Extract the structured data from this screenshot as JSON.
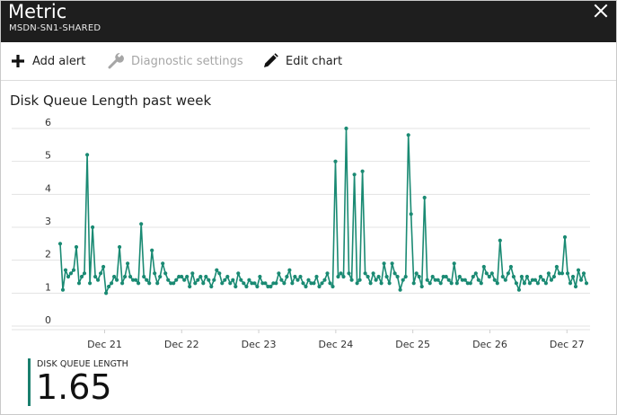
{
  "window": {
    "title": "Metric",
    "subtitle": "MSDN-SN1-SHARED"
  },
  "toolbar": {
    "add_alert": "Add alert",
    "diagnostic_settings": "Diagnostic settings",
    "edit_chart": "Edit chart"
  },
  "chart_title": "Disk Queue Length past week",
  "metric": {
    "label": "DISK QUEUE LENGTH",
    "value": "1.65"
  },
  "colors": {
    "series": "#1a8a73",
    "accent": "#1a7f6e",
    "titlebar": "#1e1e1e"
  },
  "icons": [
    "close-icon",
    "plus-icon",
    "wrench-icon",
    "pencil-icon"
  ],
  "chart_data": {
    "type": "line",
    "title": "Disk Queue Length past week",
    "ylim": [
      0,
      6
    ],
    "yticks": [
      "0",
      "1",
      "2",
      "3",
      "4",
      "5",
      "6"
    ],
    "xticks": [
      "Dec 21",
      "Dec 22",
      "Dec 23",
      "Dec 24",
      "Dec 25",
      "Dec 26",
      "Dec 27"
    ],
    "x_range_days": [
      20.4,
      27.3
    ],
    "grid": true,
    "series": [
      {
        "values": [
          2.5,
          1.1,
          1.7,
          1.5,
          1.6,
          1.7,
          2.4,
          1.3,
          1.5,
          1.6,
          5.2,
          1.3,
          3.0,
          1.5,
          1.4,
          1.6,
          1.8,
          1.0,
          1.2,
          1.3,
          1.5,
          1.4,
          2.4,
          1.3,
          1.5,
          1.9,
          1.5,
          1.4,
          1.4,
          1.3,
          3.1,
          1.5,
          1.4,
          1.3,
          2.3,
          1.6,
          1.3,
          1.5,
          1.9,
          1.6,
          1.4,
          1.3,
          1.3,
          1.4,
          1.5,
          1.5,
          1.4,
          1.5,
          1.2,
          1.6,
          1.3,
          1.4,
          1.5,
          1.3,
          1.5,
          1.4,
          1.2,
          1.4,
          1.7,
          1.6,
          1.3,
          1.4,
          1.5,
          1.3,
          1.4,
          1.2,
          1.6,
          1.4,
          1.3,
          1.2,
          1.4,
          1.3,
          1.3,
          1.2,
          1.5,
          1.3,
          1.3,
          1.2,
          1.2,
          1.3,
          1.3,
          1.6,
          1.4,
          1.3,
          1.5,
          1.7,
          1.3,
          1.5,
          1.4,
          1.5,
          1.3,
          1.2,
          1.4,
          1.3,
          1.3,
          1.5,
          1.2,
          1.3,
          1.4,
          1.6,
          1.3,
          1.2,
          5.0,
          1.5,
          1.6,
          1.5,
          6.0,
          1.6,
          1.4,
          4.6,
          1.3,
          1.4,
          4.7,
          1.6,
          1.5,
          1.3,
          1.6,
          1.4,
          1.5,
          1.3,
          1.9,
          1.5,
          1.3,
          1.9,
          1.6,
          1.5,
          1.1,
          1.4,
          1.5,
          5.8,
          3.4,
          1.3,
          1.6,
          1.5,
          1.2,
          3.9,
          1.4,
          1.3,
          1.5,
          1.4,
          1.4,
          1.3,
          1.5,
          1.5,
          1.4,
          1.3,
          1.9,
          1.3,
          1.5,
          1.4,
          1.4,
          1.3,
          1.3,
          1.5,
          1.6,
          1.4,
          1.3,
          1.8,
          1.6,
          1.5,
          1.6,
          1.4,
          1.3,
          2.6,
          1.5,
          1.4,
          1.6,
          1.8,
          1.5,
          1.3,
          1.1,
          1.5,
          1.3,
          1.5,
          1.3,
          1.4,
          1.4,
          1.3,
          1.5,
          1.4,
          1.3,
          1.6,
          1.4,
          1.5,
          1.8,
          1.6,
          1.6,
          2.7,
          1.6,
          1.3,
          1.5,
          1.2,
          1.7,
          1.4,
          1.6,
          1.3
        ]
      }
    ]
  }
}
